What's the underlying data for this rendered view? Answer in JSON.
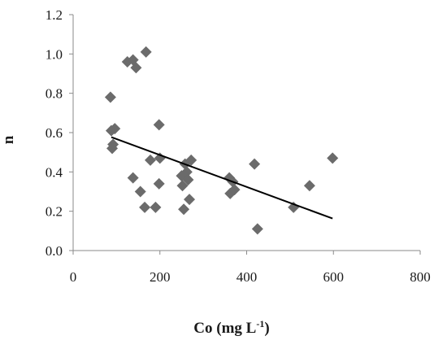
{
  "chart_data": {
    "type": "scatter",
    "title": "",
    "xlabel": "Co (mg L",
    "xlabel_sup": "-1",
    "xlabel_close": ")",
    "ylabel": "n",
    "xlim": [
      0,
      800
    ],
    "ylim": [
      0,
      1.2
    ],
    "xticks": [
      "0",
      "200",
      "400",
      "600",
      "800"
    ],
    "yticks": [
      "0.0",
      "0.2",
      "0.4",
      "0.6",
      "0.8",
      "1.0",
      "1.2"
    ],
    "grid": false,
    "marker": "diamond",
    "marker_color": "#6b6b6b",
    "series": [
      {
        "points": [
          [
            86,
            0.78
          ],
          [
            88,
            0.61
          ],
          [
            90,
            0.52
          ],
          [
            92,
            0.54
          ],
          [
            96,
            0.62
          ],
          [
            125,
            0.96
          ],
          [
            138,
            0.97
          ],
          [
            145,
            0.93
          ],
          [
            168,
            1.01
          ],
          [
            138,
            0.37
          ],
          [
            155,
            0.3
          ],
          [
            165,
            0.22
          ],
          [
            190,
            0.22
          ],
          [
            178,
            0.46
          ],
          [
            198,
            0.64
          ],
          [
            200,
            0.47
          ],
          [
            198,
            0.34
          ],
          [
            250,
            0.38
          ],
          [
            252,
            0.33
          ],
          [
            255,
            0.21
          ],
          [
            258,
            0.44
          ],
          [
            262,
            0.4
          ],
          [
            265,
            0.36
          ],
          [
            268,
            0.26
          ],
          [
            272,
            0.46
          ],
          [
            360,
            0.37
          ],
          [
            362,
            0.29
          ],
          [
            368,
            0.35
          ],
          [
            372,
            0.31
          ],
          [
            418,
            0.44
          ],
          [
            425,
            0.11
          ],
          [
            508,
            0.22
          ],
          [
            545,
            0.33
          ],
          [
            598,
            0.47
          ]
        ]
      }
    ],
    "trendline": {
      "x": [
        88,
        598
      ],
      "y": [
        0.577,
        0.163
      ],
      "color": "#000000"
    }
  }
}
